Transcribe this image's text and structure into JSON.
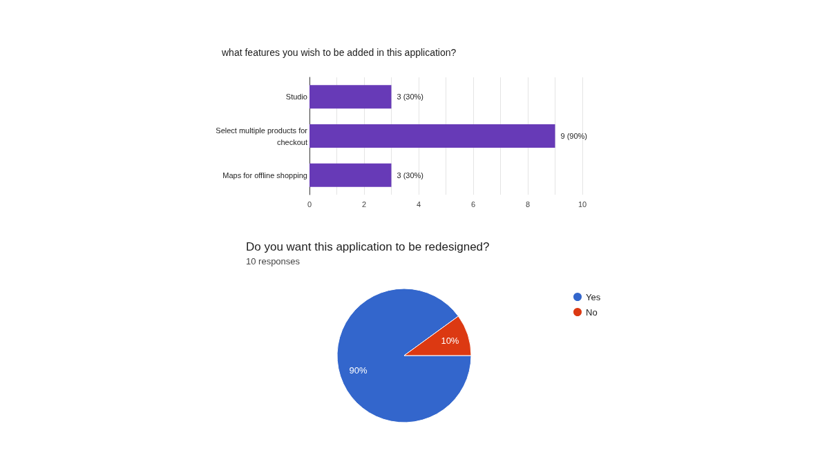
{
  "chart_data": [
    {
      "type": "bar",
      "orientation": "horizontal",
      "title": "what features you wish to be added in this application?",
      "categories": [
        "Studio",
        "Select multiple products for checkout",
        "Maps for offline shopping"
      ],
      "values": [
        3,
        9,
        3
      ],
      "color": "#673ab7",
      "value_labels": [
        "3 (30%)",
        "9 (90%)",
        "3 (30%)"
      ],
      "xlim": [
        0,
        10
      ],
      "xticks": [
        0,
        {
          "value": 1,
          "label": null
        },
        2,
        {
          "value": 3,
          "label": null
        },
        4,
        {
          "value": 5,
          "label": null
        },
        6,
        {
          "value": 7,
          "label": null
        },
        8,
        {
          "value": 9,
          "label": null
        },
        10
      ],
      "grid": "x"
    },
    {
      "type": "pie",
      "title": "Do you want this application to be redesigned?",
      "subtitle": "10 responses",
      "categories": [
        "Yes",
        "No"
      ],
      "values": [
        90,
        10
      ],
      "colors": [
        "#3366cc",
        "#dc3912"
      ],
      "value_labels": [
        "90%",
        "10%"
      ],
      "legend": "top right"
    }
  ]
}
